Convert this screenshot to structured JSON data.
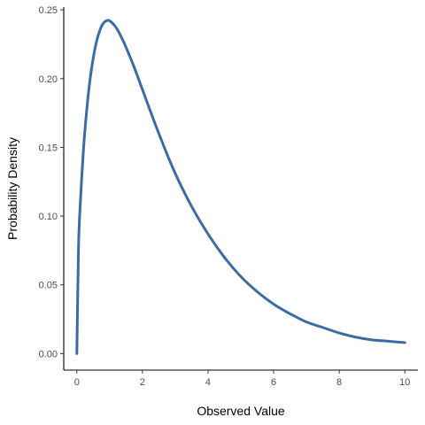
{
  "chart_data": {
    "type": "line",
    "title": "",
    "xlabel": "Observed Value",
    "ylabel": "Probability Density",
    "xlim": [
      -0.4,
      10.4
    ],
    "ylim": [
      -0.012,
      0.252
    ],
    "x_ticks": [
      0,
      2,
      4,
      6,
      8,
      10
    ],
    "x_tick_labels": [
      "0",
      "2",
      "4",
      "6",
      "8",
      "10"
    ],
    "y_ticks": [
      0.0,
      0.05,
      0.1,
      0.15,
      0.2,
      0.25
    ],
    "y_tick_labels": [
      "0.00",
      "0.05",
      "0.10",
      "0.15",
      "0.20",
      "0.25"
    ],
    "grid": false,
    "legend": "none",
    "series": [
      {
        "color": "#3b6ba5",
        "x": [
          0,
          0.05,
          0.1,
          0.2,
          0.3,
          0.4,
          0.5,
          0.6,
          0.7,
          0.8,
          0.9,
          1.0,
          1.2,
          1.4,
          1.6,
          1.8,
          2.0,
          2.5,
          3.0,
          3.5,
          4.0,
          4.5,
          5.0,
          5.5,
          6.0,
          6.5,
          7.0,
          7.5,
          8.0,
          8.5,
          9.0,
          9.5,
          10.0
        ],
        "y": [
          0.0,
          0.077,
          0.107,
          0.148,
          0.177,
          0.199,
          0.215,
          0.227,
          0.235,
          0.24,
          0.242,
          0.242,
          0.237,
          0.228,
          0.217,
          0.205,
          0.192,
          0.16,
          0.131,
          0.107,
          0.087,
          0.07,
          0.056,
          0.045,
          0.036,
          0.029,
          0.023,
          0.019,
          0.015,
          0.012,
          0.01,
          0.009,
          0.008
        ]
      }
    ]
  }
}
